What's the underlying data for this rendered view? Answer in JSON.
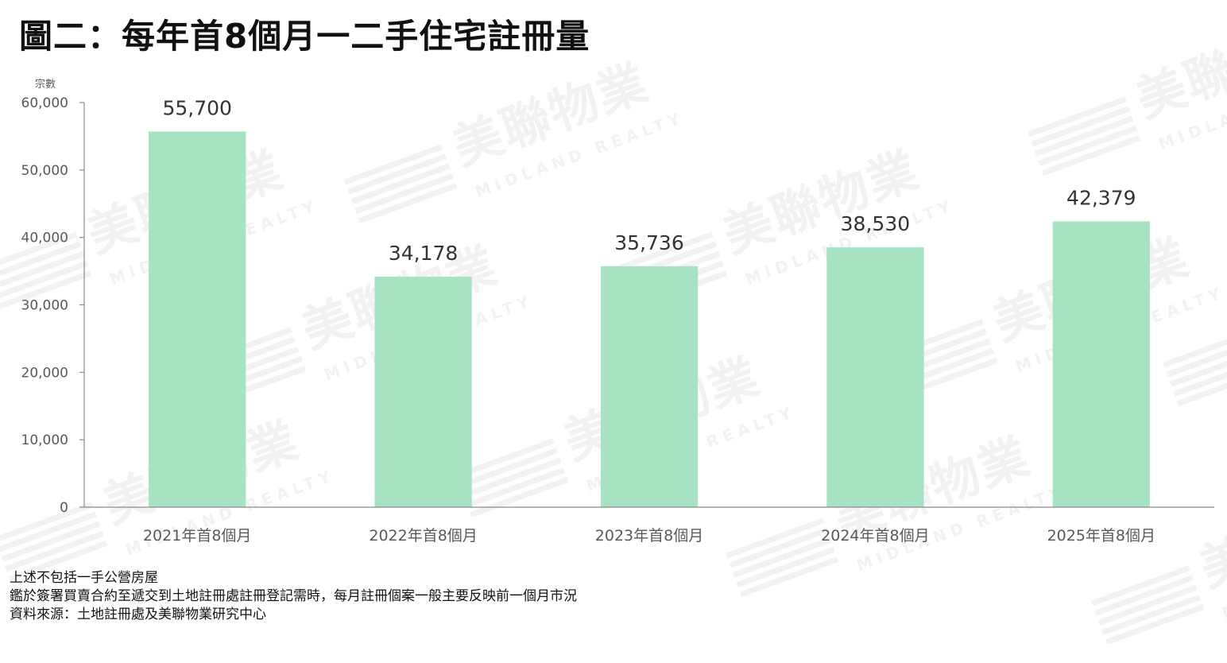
{
  "title": "圖二：每年首8個月一二手住宅註冊量",
  "watermark": {
    "brand": "美聯物業",
    "sub": "MIDLAND REALTY"
  },
  "colors": {
    "bar": "#a6e3c3",
    "axis": "#8c8c8c",
    "tick_text": "#595959",
    "label_text": "#333333"
  },
  "chart_data": {
    "type": "bar",
    "ylabel": "宗數",
    "xlabel": "",
    "ylim": [
      0,
      60000
    ],
    "yticks": [
      0,
      10000,
      20000,
      30000,
      40000,
      50000,
      60000
    ],
    "ytick_labels": [
      "0",
      "10,000",
      "20,000",
      "30,000",
      "40,000",
      "50,000",
      "60,000"
    ],
    "grid": false,
    "legend": "none",
    "categories": [
      "2021年首8個月",
      "2022年首8個月",
      "2023年首8個月",
      "2024年首8個月",
      "2025年首8個月"
    ],
    "values": [
      55700,
      34178,
      35736,
      38530,
      42379
    ],
    "data_labels": [
      "55,700",
      "34,178",
      "35,736",
      "38,530",
      "42,379"
    ]
  },
  "notes": [
    "上述不包括一手公營房屋",
    "鑑於簽署買賣合約至遞交到土地註冊處註冊登記需時，每月註冊個案一般主要反映前一個月市況",
    "資料來源：土地註冊處及美聯物業研究中心"
  ]
}
